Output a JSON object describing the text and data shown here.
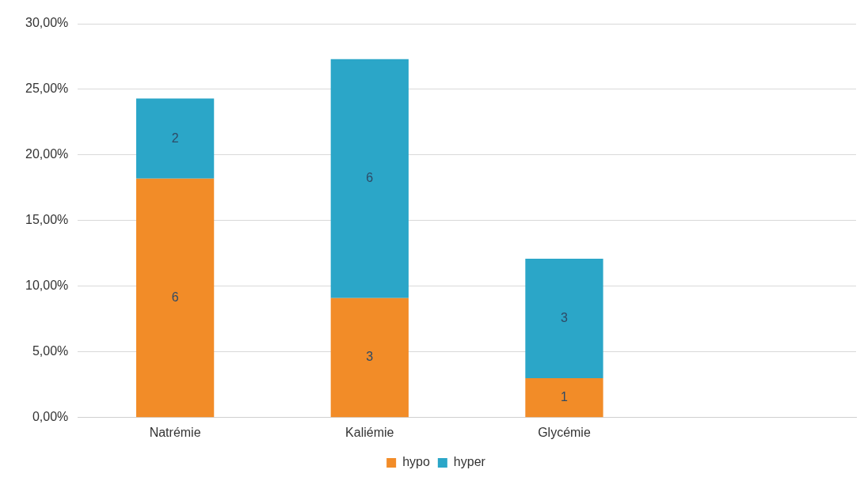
{
  "chart_data": {
    "type": "bar",
    "stacked": true,
    "categories": [
      "Natrémie",
      "Kaliémie",
      "Glycémie",
      null
    ],
    "series": [
      {
        "name": "hypo",
        "color": "#f28c28",
        "values": [
          18.2,
          9.1,
          3.0,
          null
        ]
      },
      {
        "name": "hyper",
        "color": "#2ba6c8",
        "values": [
          6.1,
          18.2,
          9.1,
          null
        ]
      }
    ],
    "annotations": [
      "6",
      "2",
      "3",
      "6",
      "1",
      "3"
    ],
    "ylim": [
      0,
      30
    ],
    "yticks": [
      {
        "value": 0,
        "label": "0,00%"
      },
      {
        "value": 5,
        "label": "5,00%"
      },
      {
        "value": 10,
        "label": "10,00%"
      },
      {
        "value": 15,
        "label": "15,00%"
      },
      {
        "value": 20,
        "label": "20,00%"
      },
      {
        "value": 25,
        "label": "25,00%"
      },
      {
        "value": 30,
        "label": "30,00%"
      }
    ],
    "grid": "y",
    "legend": "bottom"
  }
}
